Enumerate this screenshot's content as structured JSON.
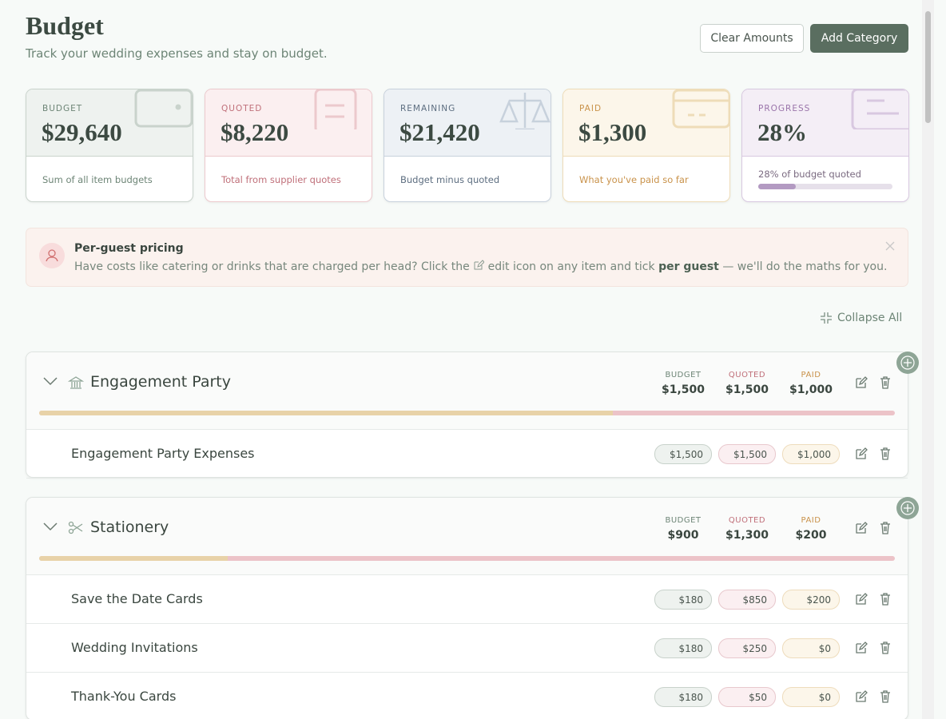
{
  "header": {
    "title": "Budget",
    "subtitle": "Track your wedding expenses and stay on budget.",
    "buttons": [
      "Clear Amounts",
      "Add Category"
    ]
  },
  "cards": [
    {
      "label": "BUDGET",
      "value": "$29,640",
      "caption": "Sum of all item budgets"
    },
    {
      "label": "QUOTED",
      "value": "$8,220",
      "caption": "Total from supplier quotes"
    },
    {
      "label": "REMAINING",
      "value": "$21,420",
      "caption": "Budget minus quoted"
    },
    {
      "label": "PAID",
      "value": "$1,300",
      "caption": "What you've paid so far"
    },
    {
      "label": "PROGRESS",
      "value": "28%",
      "caption": "28% of budget quoted"
    }
  ],
  "notice": {
    "title": "Per-guest pricing",
    "text_before": "Have costs like catering or drinks that are charged per head? Click the",
    "text_middle": "edit icon on any item and tick",
    "emphasis": "per guest",
    "text_after": "— we'll do the maths for you."
  },
  "collapse_all": "Collapse All",
  "column_labels": [
    "BUDGET",
    "QUOTED",
    "PAID"
  ],
  "categories": [
    {
      "name": "Engagement Party",
      "budget": "$1,500",
      "quoted": "$1,500",
      "paid": "$1,000",
      "items": [
        {
          "name": "Engagement Party Expenses",
          "budget": "$1,500",
          "quoted": "$1,500",
          "paid": "$1,000"
        }
      ]
    },
    {
      "name": "Stationery",
      "budget": "$900",
      "quoted": "$1,300",
      "paid": "$200",
      "items": [
        {
          "name": "Save the Date Cards",
          "budget": "$180",
          "quoted": "$850",
          "paid": "$200"
        },
        {
          "name": "Wedding Invitations",
          "budget": "$180",
          "quoted": "$250",
          "paid": "$0"
        },
        {
          "name": "Thank-You Cards",
          "budget": "$180",
          "quoted": "$50",
          "paid": "$0"
        }
      ]
    }
  ]
}
